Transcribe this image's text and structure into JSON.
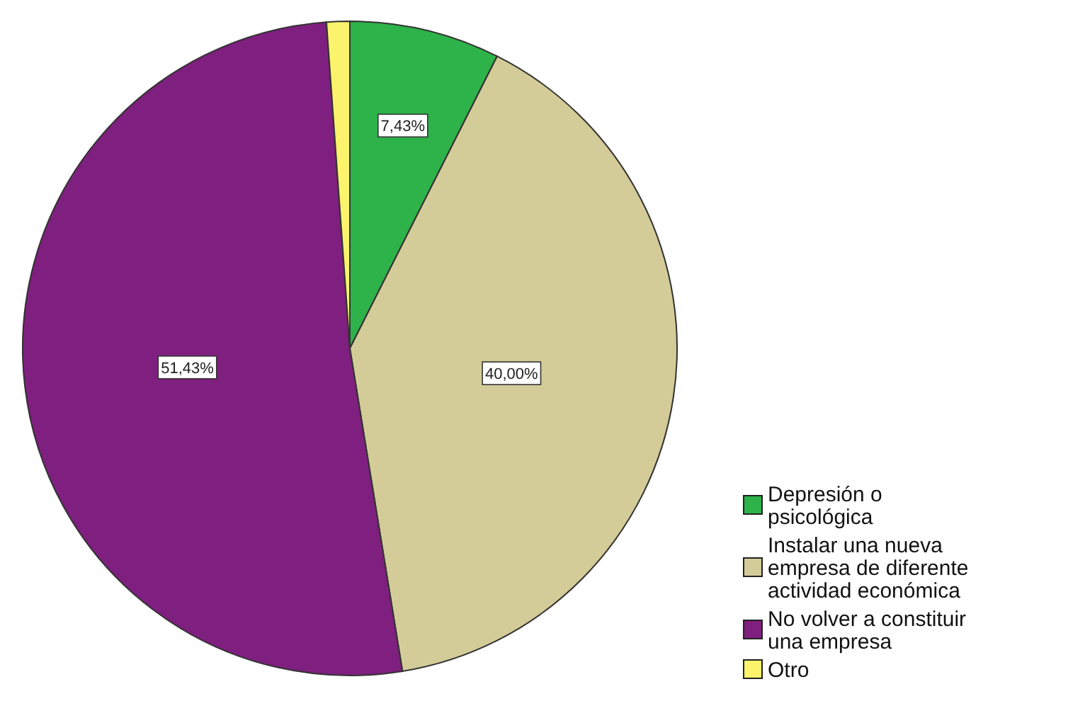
{
  "chart_data": {
    "type": "pie",
    "categories": [
      "Depresión o psicológica",
      "Instalar una nueva empresa de diferente actividad económica",
      "No volver a constituir una empresa",
      "Otro"
    ],
    "values": [
      7.43,
      40.0,
      51.43,
      1.14
    ],
    "colors": [
      "#2db34a",
      "#d4cc98",
      "#7f1f7f",
      "#fbf36c"
    ],
    "value_labels": [
      "7,43%",
      "40,00%",
      "51,43%",
      null
    ],
    "legend": "right"
  }
}
